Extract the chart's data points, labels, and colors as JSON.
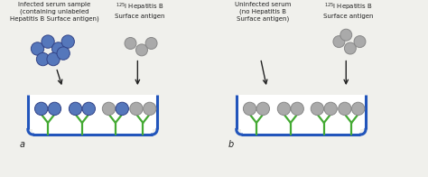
{
  "bg_color": "#f0f0ec",
  "white": "#ffffff",
  "blue_antigen_color": "#5577bb",
  "blue_antigen_edge": "#334488",
  "gray_antigen_color": "#aaaaaa",
  "gray_antigen_edge": "#888888",
  "antibody_color": "#44aa33",
  "well_color": "#2255bb",
  "well_linewidth": 2.2,
  "text_color": "#222222",
  "arrow_color": "#222222",
  "panel_a_label": "a",
  "panel_b_label": "b",
  "text_a_left_title": "Infected serum sample\n(containing unlabeled\nHepatitis B Surface antigen)",
  "text_a_right_title": "$^{125}$I Hepatitis B\nSurface antigen",
  "text_b_left_title": "Uninfected serum\n(no Hepatitis B\nSurface antigen)",
  "text_b_right_title": "$^{125}$I Hepatitis B\nSurface antigen",
  "fig_width": 4.74,
  "fig_height": 1.96,
  "dpi": 100
}
